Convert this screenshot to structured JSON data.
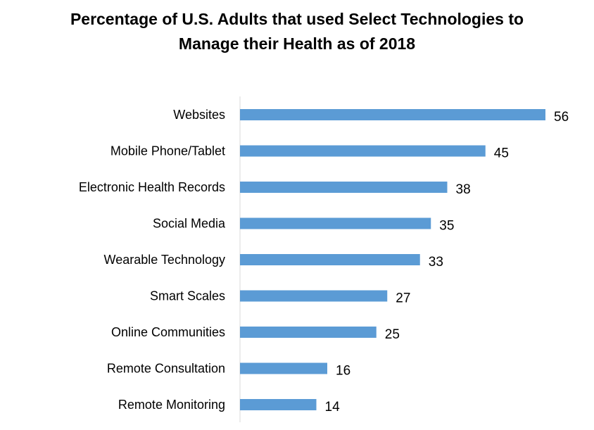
{
  "chart_data": {
    "type": "bar",
    "orientation": "horizontal",
    "title": "Percentage of U.S. Adults that used Select Technologies to Manage their Health as of 2018",
    "title_lines": [
      "Percentage of U.S. Adults that used Select Technologies to",
      "Manage their Health as of 2018"
    ],
    "categories": [
      "Websites",
      "Mobile Phone/Tablet",
      "Electronic Health Records",
      "Social Media",
      "Wearable Technology",
      "Smart Scales",
      "Online Communities",
      "Remote Consultation",
      "Remote Monitoring"
    ],
    "values": [
      56,
      45,
      38,
      35,
      33,
      27,
      25,
      16,
      14
    ],
    "xlabel": "",
    "ylabel": "",
    "xlim": [
      0,
      56
    ],
    "grid": false,
    "legend": "none",
    "data_labels": true,
    "bar_color": "#5B9BD5",
    "axis_color": "#D9D9D9"
  }
}
